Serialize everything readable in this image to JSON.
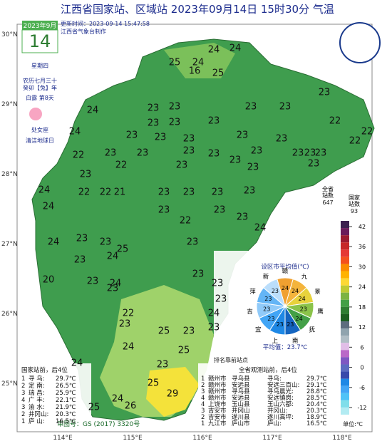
{
  "header": {
    "title": "江西省国家站、区域站  2023年09月14日  15时30分  气温",
    "update": "更新时间：2023-09-14 15:47:58",
    "maker": "江西省气象台制作"
  },
  "calendar": {
    "month": "2023年9月",
    "day": "14",
    "weekday": "星期四",
    "lunar": "农历七月三十",
    "year": "癸卯【兔】年",
    "term": "白露  第8天",
    "zodiac": "处女座",
    "festival": "清洁地球日"
  },
  "axes": {
    "lat": [
      "30°N",
      "29°N",
      "28°N",
      "27°N",
      "26°N",
      "25°N"
    ],
    "lon": [
      "114°E",
      "115°E",
      "116°E",
      "117°E",
      "118°E"
    ]
  },
  "map": {
    "temps": [
      25,
      24,
      24,
      24,
      16,
      25,
      23,
      24,
      23,
      23,
      23,
      23,
      22,
      23,
      23,
      23,
      24,
      23,
      23,
      23,
      23,
      23,
      22,
      22,
      23,
      23,
      23,
      23,
      23,
      23,
      23,
      23,
      22,
      23,
      22,
      23,
      23,
      23,
      23,
      24,
      22,
      22,
      21,
      23,
      23,
      23,
      23,
      24,
      23,
      23,
      22,
      23,
      24,
      24,
      23,
      23,
      25,
      23,
      24,
      23,
      23,
      20,
      23,
      24,
      23,
      23,
      23,
      22,
      23,
      24,
      23,
      25,
      23,
      25,
      24,
      24,
      23,
      25,
      29,
      24,
      25,
      26
    ],
    "marker_note": "排名靠前站点",
    "approval": "审图号：GS (2017) 3320号"
  },
  "legend": {
    "all_label": "全省\n站数",
    "all_count": "647",
    "nat_label": "国家\n站数",
    "nat_count": "93",
    "ticks": [
      42,
      36,
      30,
      24,
      18,
      12,
      6,
      0,
      -6,
      -12
    ],
    "unit": "单位:℃"
  },
  "pie": {
    "title": "设区市平均值(℃)",
    "regions": [
      {
        "name": "赣",
        "value": 24
      },
      {
        "name": "九",
        "value": 24
      },
      {
        "name": "景",
        "value": 24
      },
      {
        "name": "鹰",
        "value": 23
      },
      {
        "name": "抚",
        "value": 24
      },
      {
        "name": "南",
        "value": 23
      },
      {
        "name": "上",
        "value": 23
      },
      {
        "name": "宜",
        "value": 23
      },
      {
        "name": "吉",
        "value": 23
      },
      {
        "name": "萍",
        "value": 23
      },
      {
        "name": "新",
        "value": 23
      }
    ],
    "average": "平均值：23.7℃"
  },
  "left_table": {
    "title": "国家站前，后4位",
    "rows": [
      [
        "1",
        "寻  乌:",
        "29.7℃"
      ],
      [
        "2",
        "定  南:",
        "26.5℃"
      ],
      [
        "3",
        "瑞  昌:",
        "25.9℃"
      ],
      [
        "4",
        "广  丰:",
        "22.1℃"
      ],
      [
        "3",
        "渝  水:",
        "21.9℃"
      ],
      [
        "2",
        "井冈山:",
        "20.3℃"
      ],
      [
        "1",
        "庐  山:",
        "16.5℃"
      ]
    ]
  },
  "right_table": {
    "title": "全省观测站前，后4位",
    "rows": [
      [
        "1",
        "赣州市",
        "寻乌县",
        "寻乌:",
        "29.7℃"
      ],
      [
        "2",
        "赣州市",
        "安远县",
        "安远三百山:",
        "29.1℃"
      ],
      [
        "3",
        "赣州市",
        "寻乌县",
        "寻乌晨光:",
        "28.8℃"
      ],
      [
        "4",
        "赣州市",
        "安远县",
        "安远镇岗:",
        "28.5℃"
      ],
      [
        "4",
        "上饶市",
        "玉山县",
        "玉山六都:",
        "20.4℃"
      ],
      [
        "3",
        "吉安市",
        "井冈山",
        "井冈山:",
        "20.3℃"
      ],
      [
        "2",
        "吉安市",
        "遂川县",
        "遂川高坪:",
        "18.9℃"
      ],
      [
        "1",
        "九江市",
        "庐山市",
        "庐山:",
        "16.5℃"
      ]
    ]
  }
}
